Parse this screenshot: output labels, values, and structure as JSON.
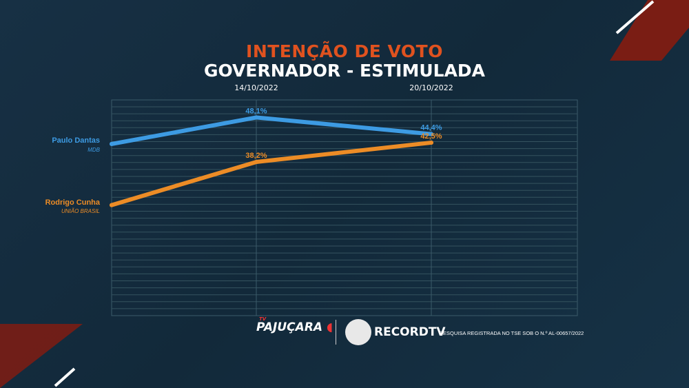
{
  "header": {
    "title": "INTENÇÃO DE VOTO",
    "subtitle": "GOVERNADOR - ESTIMULADA"
  },
  "chart_data": {
    "type": "line",
    "title": "INTENÇÃO DE VOTO",
    "subtitle": "GOVERNADOR - ESTIMULADA",
    "categories": [
      "",
      "14/10/2022",
      "20/10/2022"
    ],
    "ylim": [
      4,
      52
    ],
    "grid": true,
    "series": [
      {
        "name": "Paulo Dantas",
        "party": "MDB",
        "color": "#3d9be3",
        "values": [
          42.2,
          48.1,
          44.4
        ],
        "labels": [
          "",
          "48,1%",
          "44,4%"
        ]
      },
      {
        "name": "Rodrigo Cunha",
        "party": "UNIÃO BRASIL",
        "color": "#ec8c26",
        "values": [
          28.6,
          38.2,
          42.5
        ],
        "labels": [
          "",
          "38,2%",
          "42,5%"
        ]
      }
    ]
  },
  "footer": {
    "logo_left": "PAJUÇARA",
    "logo_left_tv": "TV",
    "logo_right": "RECORDTV",
    "note": "PESQUISA REGISTRADA NO TSE SOB O N.º AL-00657/2022"
  }
}
